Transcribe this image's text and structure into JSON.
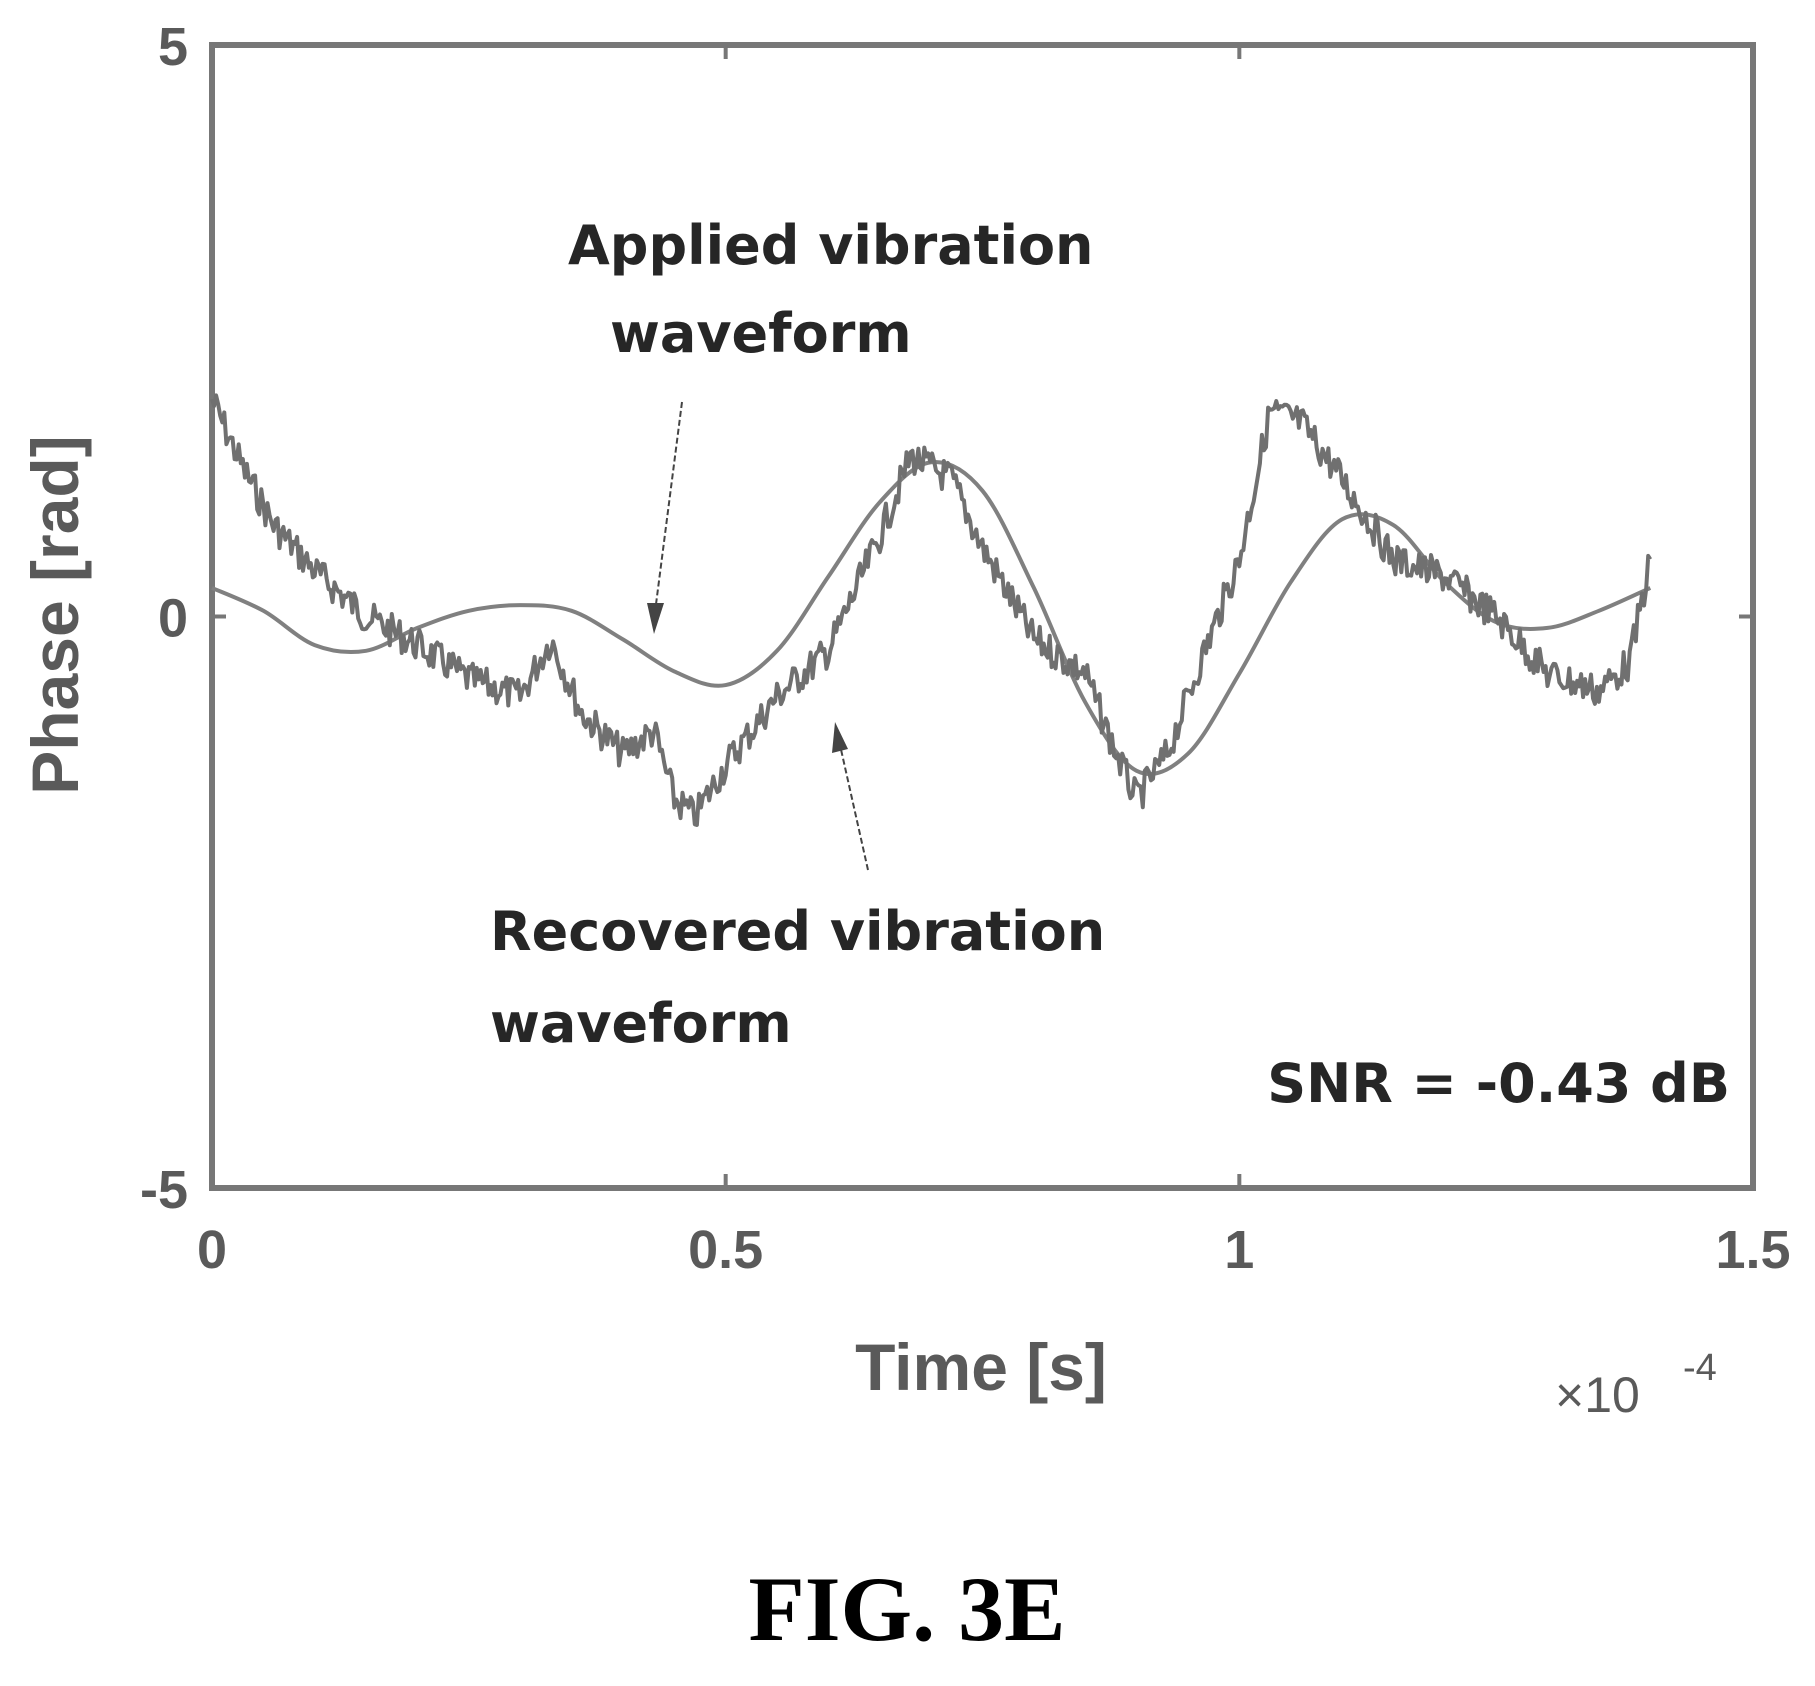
{
  "figure_label": "FIG. 3E",
  "colors": {
    "axes": "#777777",
    "applied": "#808080",
    "recovered": "#707070",
    "text": "#262626",
    "arrow": "#444444"
  },
  "chart_data": {
    "type": "line",
    "title": "",
    "xlabel": "Time [s]",
    "ylabel": "Phase [rad]",
    "x_exponent_label": "×10",
    "x_exponent_power": "-4",
    "xlim": [
      0,
      1.5
    ],
    "ylim": [
      -5,
      5
    ],
    "x_scale_factor": 0.0001,
    "xticks": [
      0,
      0.5,
      1,
      1.5
    ],
    "xtick_labels": [
      "0",
      "0.5",
      "1",
      "1.5"
    ],
    "yticks": [
      -5,
      0,
      5
    ],
    "ytick_labels": [
      "-5",
      "0",
      "5"
    ],
    "grid": false,
    "legend": "none",
    "series": [
      {
        "name": "Applied vibration waveform",
        "style": "smooth",
        "x": [
          0,
          0.05,
          0.1,
          0.15,
          0.2,
          0.25,
          0.3,
          0.35,
          0.4,
          0.45,
          0.5,
          0.55,
          0.6,
          0.65,
          0.7,
          0.75,
          0.8,
          0.85,
          0.9,
          0.95,
          1.0,
          1.05,
          1.1,
          1.15,
          1.2,
          1.25,
          1.3,
          1.35,
          1.4
        ],
        "y": [
          0.25,
          0.05,
          -0.25,
          -0.3,
          -0.1,
          0.05,
          0.1,
          0.05,
          -0.2,
          -0.48,
          -0.6,
          -0.3,
          0.35,
          1.0,
          1.35,
          1.1,
          0.25,
          -0.75,
          -1.35,
          -1.2,
          -0.5,
          0.3,
          0.85,
          0.8,
          0.3,
          -0.05,
          -0.1,
          0.05,
          0.25
        ]
      },
      {
        "name": "Recovered vibration waveform",
        "style": "noisy",
        "x": [
          0,
          0.03,
          0.06,
          0.1,
          0.15,
          0.2,
          0.25,
          0.3,
          0.33,
          0.36,
          0.4,
          0.43,
          0.45,
          0.47,
          0.5,
          0.55,
          0.6,
          0.65,
          0.68,
          0.72,
          0.75,
          0.8,
          0.85,
          0.88,
          0.9,
          0.93,
          0.96,
          1.0,
          1.03,
          1.06,
          1.1,
          1.15,
          1.2,
          1.25,
          1.3,
          1.35,
          1.38,
          1.4
        ],
        "y": [
          1.9,
          1.3,
          0.8,
          0.4,
          0.0,
          -0.25,
          -0.55,
          -0.7,
          -0.2,
          -0.85,
          -1.2,
          -1.0,
          -1.6,
          -1.75,
          -1.3,
          -0.7,
          -0.3,
          0.7,
          1.4,
          1.2,
          0.6,
          -0.2,
          -0.5,
          -1.2,
          -1.6,
          -1.2,
          -0.45,
          0.5,
          1.8,
          1.7,
          1.2,
          0.5,
          0.35,
          0.0,
          -0.5,
          -0.65,
          -0.4,
          0.5
        ]
      }
    ],
    "annotations": {
      "applied_line1": "Applied vibration",
      "applied_line2": "waveform",
      "recovered_line1": "Recovered vibration",
      "recovered_line2": "waveform",
      "snr": "SNR = -0.43 dB"
    }
  }
}
